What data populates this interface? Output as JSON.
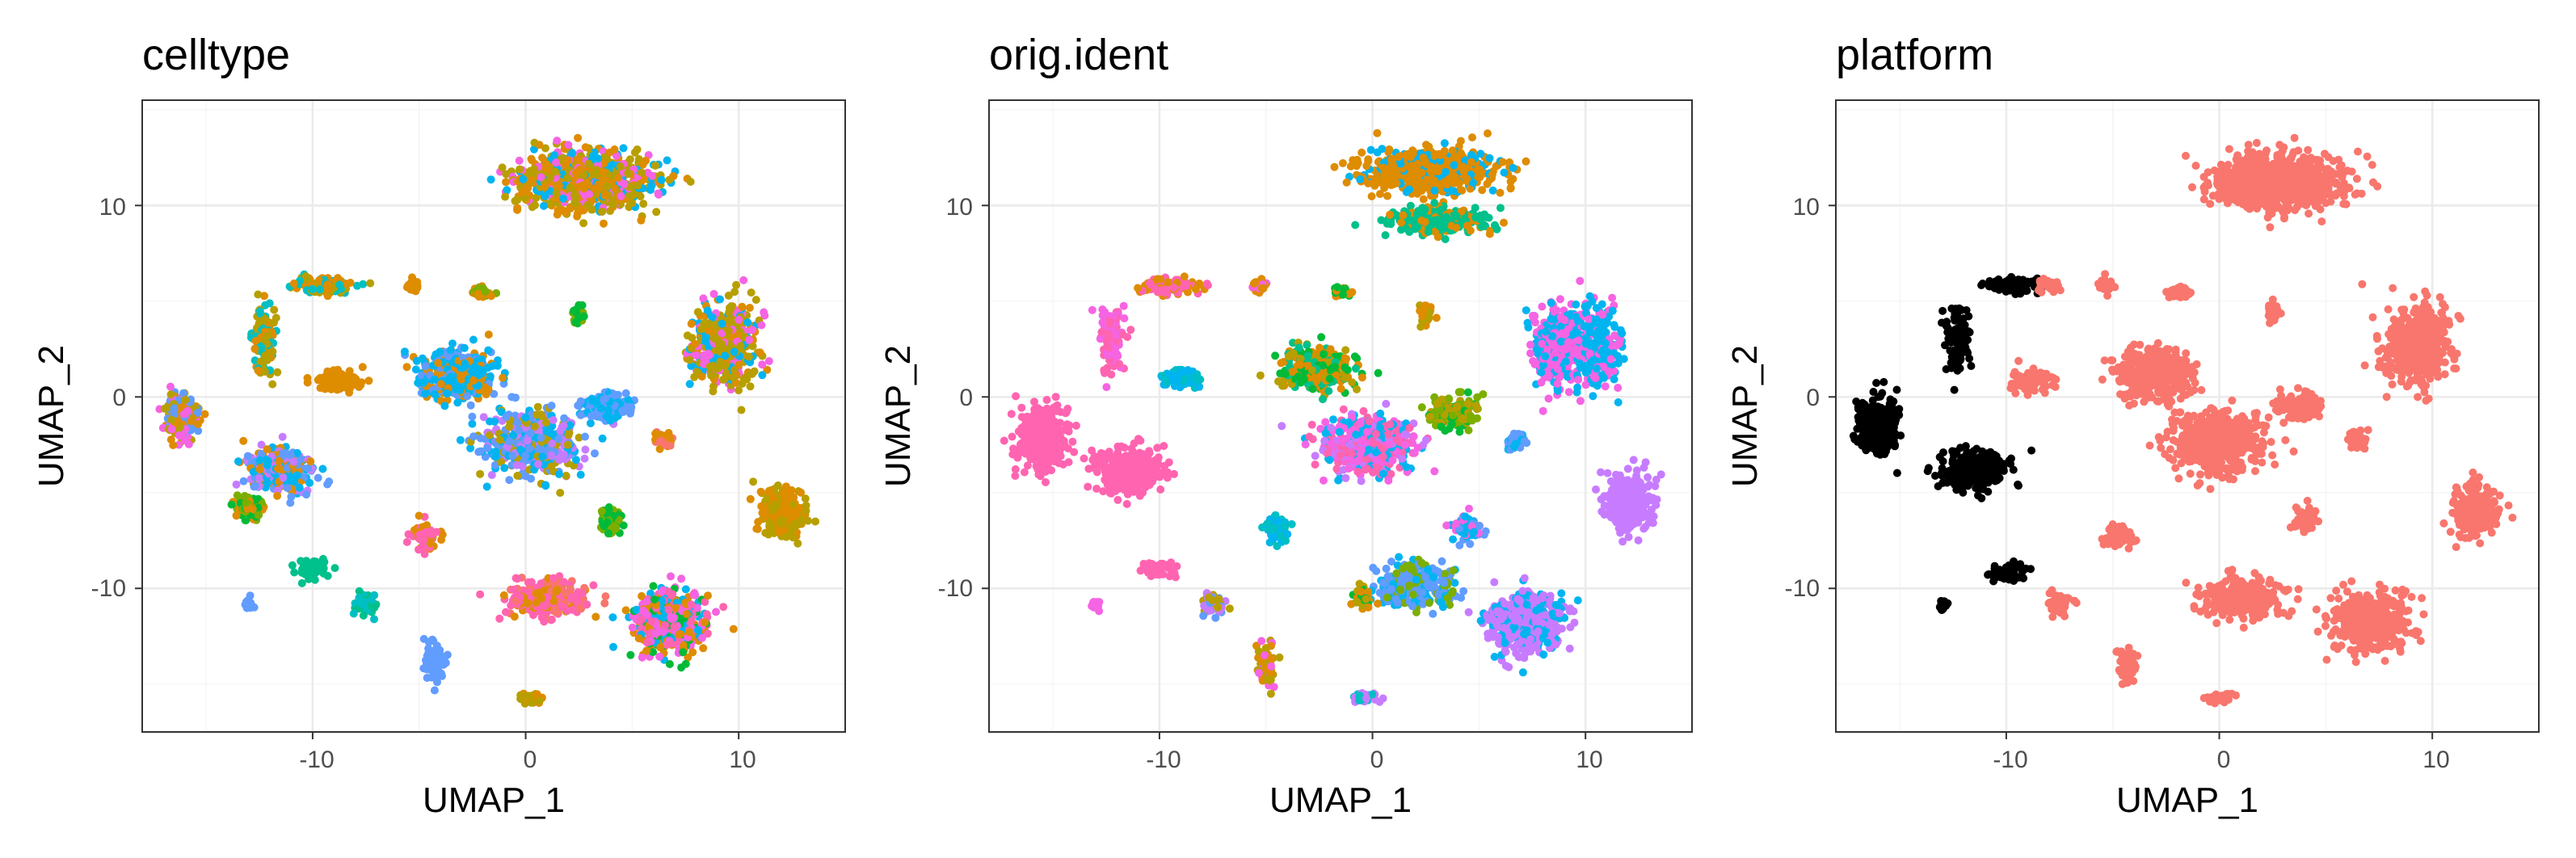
{
  "chart_data": [
    {
      "type": "scatter",
      "title": "celltype",
      "xlabel": "UMAP_1",
      "ylabel": "UMAP_2",
      "xlim": [
        -18,
        15
      ],
      "ylim": [
        -17.5,
        15.5
      ],
      "xticks": [
        -10,
        0,
        10
      ],
      "yticks": [
        -10,
        0,
        10
      ],
      "xtick_labels": [
        "-10",
        "0",
        "10"
      ],
      "ytick_labels": [
        "-10",
        "0",
        "10"
      ],
      "grid": true,
      "legend": "none",
      "palette": [
        "#F8766D",
        "#DE8C00",
        "#B79F00",
        "#7CAE00",
        "#00BA38",
        "#00C08B",
        "#00BFC4",
        "#00B4F0",
        "#619CFF",
        "#C77CFF",
        "#F564E3",
        "#FF64B0"
      ],
      "clusters": [
        {
          "x": 2.8,
          "y": 11.3,
          "sx": 2.8,
          "sy": 1.3,
          "n": 900,
          "colors": [
            1,
            2,
            1,
            2,
            7,
            10
          ]
        },
        {
          "x": 9.3,
          "y": 2.7,
          "sx": 1.4,
          "sy": 1.9,
          "n": 500,
          "colors": [
            2,
            1,
            2,
            7,
            10
          ]
        },
        {
          "x": 1.0,
          "y": -10.5,
          "sx": 1.6,
          "sy": 0.9,
          "n": 300,
          "colors": [
            11,
            11,
            0,
            1
          ]
        },
        {
          "x": 6.8,
          "y": -11.8,
          "sx": 1.6,
          "sy": 1.4,
          "n": 450,
          "colors": [
            11,
            10,
            1,
            7,
            4
          ]
        },
        {
          "x": 12.0,
          "y": -6.0,
          "sx": 0.9,
          "sy": 1.1,
          "n": 280,
          "colors": [
            2,
            1
          ]
        },
        {
          "x": -3.2,
          "y": 1.2,
          "sx": 1.6,
          "sy": 1.2,
          "n": 420,
          "colors": [
            7,
            7,
            8,
            1
          ]
        },
        {
          "x": 0.3,
          "y": -2.4,
          "sx": 2.0,
          "sy": 1.5,
          "n": 500,
          "colors": [
            8,
            9,
            7,
            2
          ]
        },
        {
          "x": 3.8,
          "y": -0.5,
          "sx": 1.0,
          "sy": 0.6,
          "n": 150,
          "colors": [
            7,
            8
          ]
        },
        {
          "x": -16.2,
          "y": -1.0,
          "sx": 0.7,
          "sy": 1.1,
          "n": 200,
          "colors": [
            1,
            2,
            8,
            10
          ]
        },
        {
          "x": -11.5,
          "y": -3.8,
          "sx": 1.4,
          "sy": 1.0,
          "n": 320,
          "colors": [
            8,
            9,
            7,
            1
          ]
        },
        {
          "x": -13.0,
          "y": -5.8,
          "sx": 0.6,
          "sy": 0.5,
          "n": 80,
          "colors": [
            4,
            3,
            1
          ]
        },
        {
          "x": -12.3,
          "y": 3.0,
          "sx": 0.5,
          "sy": 1.6,
          "n": 120,
          "colors": [
            1,
            2,
            6
          ]
        },
        {
          "x": -9.5,
          "y": 5.8,
          "sx": 1.3,
          "sy": 0.4,
          "n": 100,
          "colors": [
            1,
            2,
            6
          ]
        },
        {
          "x": -8.8,
          "y": 0.8,
          "sx": 0.9,
          "sy": 0.5,
          "n": 90,
          "colors": [
            1
          ]
        },
        {
          "x": -5.3,
          "y": 5.8,
          "sx": 0.3,
          "sy": 0.3,
          "n": 30,
          "colors": [
            1
          ]
        },
        {
          "x": -2.0,
          "y": 5.5,
          "sx": 0.4,
          "sy": 0.3,
          "n": 35,
          "colors": [
            1,
            3
          ]
        },
        {
          "x": 2.5,
          "y": 4.4,
          "sx": 0.3,
          "sy": 0.5,
          "n": 40,
          "colors": [
            3,
            4
          ]
        },
        {
          "x": 4.0,
          "y": -6.4,
          "sx": 0.5,
          "sy": 0.6,
          "n": 60,
          "colors": [
            3,
            4
          ]
        },
        {
          "x": 6.5,
          "y": -2.2,
          "sx": 0.4,
          "sy": 0.4,
          "n": 45,
          "colors": [
            0,
            1
          ]
        },
        {
          "x": -4.7,
          "y": -7.3,
          "sx": 0.6,
          "sy": 0.5,
          "n": 60,
          "colors": [
            1,
            11
          ]
        },
        {
          "x": -7.5,
          "y": -10.8,
          "sx": 0.5,
          "sy": 0.5,
          "n": 60,
          "colors": [
            5,
            6
          ]
        },
        {
          "x": -10.0,
          "y": -9.0,
          "sx": 0.8,
          "sy": 0.4,
          "n": 50,
          "colors": [
            5
          ]
        },
        {
          "x": -4.3,
          "y": -14.0,
          "sx": 0.4,
          "sy": 1.0,
          "n": 70,
          "colors": [
            8
          ]
        },
        {
          "x": 0.2,
          "y": -15.7,
          "sx": 0.5,
          "sy": 0.2,
          "n": 40,
          "colors": [
            2,
            1
          ]
        },
        {
          "x": -13.0,
          "y": -10.8,
          "sx": 0.2,
          "sy": 0.3,
          "n": 15,
          "colors": [
            8
          ]
        }
      ]
    },
    {
      "type": "scatter",
      "title": "orig.ident",
      "xlabel": "UMAP_1",
      "ylabel": "UMAP_2",
      "xlim": [
        -18,
        15
      ],
      "ylim": [
        -17.5,
        15.5
      ],
      "xticks": [
        -10,
        0,
        10
      ],
      "yticks": [
        -10,
        0,
        10
      ],
      "xtick_labels": [
        "-10",
        "0",
        "10"
      ],
      "ytick_labels": [
        "-10",
        "0",
        "10"
      ],
      "grid": true,
      "legend": "none",
      "palette": [
        "#F8766D",
        "#DE8C00",
        "#B79F00",
        "#7CAE00",
        "#00BA38",
        "#00C08B",
        "#00BFC4",
        "#00B4F0",
        "#619CFF",
        "#C77CFF",
        "#F564E3",
        "#FF64B0"
      ],
      "clusters": [
        {
          "x": 2.8,
          "y": 11.8,
          "sx": 2.8,
          "sy": 1.0,
          "n": 700,
          "colors": [
            1,
            1,
            1,
            7
          ]
        },
        {
          "x": 3.0,
          "y": 9.2,
          "sx": 2.2,
          "sy": 0.6,
          "n": 300,
          "colors": [
            5,
            5,
            1
          ]
        },
        {
          "x": 8.8,
          "y": 2.7,
          "sx": 1.2,
          "sy": 1.8,
          "n": 350,
          "colors": [
            10,
            10,
            7
          ]
        },
        {
          "x": 10.6,
          "y": 2.7,
          "sx": 0.9,
          "sy": 1.9,
          "n": 250,
          "colors": [
            7,
            7,
            10
          ]
        },
        {
          "x": 12.0,
          "y": -5.5,
          "sx": 1.0,
          "sy": 1.3,
          "n": 300,
          "colors": [
            9
          ]
        },
        {
          "x": 7.2,
          "y": -11.8,
          "sx": 1.6,
          "sy": 1.5,
          "n": 450,
          "colors": [
            9,
            9,
            7
          ]
        },
        {
          "x": 2.0,
          "y": -9.8,
          "sx": 1.6,
          "sy": 1.0,
          "n": 320,
          "colors": [
            8,
            8,
            7,
            3
          ]
        },
        {
          "x": -2.6,
          "y": 1.5,
          "sx": 1.5,
          "sy": 1.0,
          "n": 300,
          "colors": [
            1,
            5,
            4,
            2
          ]
        },
        {
          "x": -0.3,
          "y": -2.5,
          "sx": 1.9,
          "sy": 1.4,
          "n": 450,
          "colors": [
            10,
            9,
            11,
            7
          ]
        },
        {
          "x": 3.8,
          "y": -0.8,
          "sx": 1.0,
          "sy": 0.7,
          "n": 150,
          "colors": [
            4,
            3,
            2
          ]
        },
        {
          "x": -15.5,
          "y": -2.0,
          "sx": 1.0,
          "sy": 1.6,
          "n": 280,
          "colors": [
            11
          ]
        },
        {
          "x": -11.5,
          "y": -3.8,
          "sx": 1.5,
          "sy": 1.0,
          "n": 320,
          "colors": [
            11
          ]
        },
        {
          "x": -12.3,
          "y": 3.0,
          "sx": 0.5,
          "sy": 1.6,
          "n": 120,
          "colors": [
            11,
            10
          ]
        },
        {
          "x": -9.5,
          "y": 5.8,
          "sx": 1.3,
          "sy": 0.4,
          "n": 100,
          "colors": [
            11,
            1
          ]
        },
        {
          "x": -9.0,
          "y": 1.0,
          "sx": 0.8,
          "sy": 0.4,
          "n": 80,
          "colors": [
            7,
            6
          ]
        },
        {
          "x": -5.3,
          "y": 5.8,
          "sx": 0.3,
          "sy": 0.3,
          "n": 30,
          "colors": [
            10,
            1
          ]
        },
        {
          "x": -1.5,
          "y": 5.5,
          "sx": 0.4,
          "sy": 0.3,
          "n": 35,
          "colors": [
            1,
            4
          ]
        },
        {
          "x": 2.5,
          "y": 4.4,
          "sx": 0.3,
          "sy": 0.5,
          "n": 40,
          "colors": [
            1,
            2
          ]
        },
        {
          "x": 4.5,
          "y": -6.8,
          "sx": 0.6,
          "sy": 0.6,
          "n": 70,
          "colors": [
            7,
            8,
            10
          ]
        },
        {
          "x": 6.8,
          "y": -2.3,
          "sx": 0.4,
          "sy": 0.4,
          "n": 45,
          "colors": [
            7,
            8
          ]
        },
        {
          "x": -4.5,
          "y": -7.0,
          "sx": 0.5,
          "sy": 0.6,
          "n": 60,
          "colors": [
            6,
            7
          ]
        },
        {
          "x": -7.5,
          "y": -10.8,
          "sx": 0.5,
          "sy": 0.5,
          "n": 60,
          "colors": [
            8,
            9,
            2
          ]
        },
        {
          "x": -10.0,
          "y": -9.0,
          "sx": 0.8,
          "sy": 0.4,
          "n": 50,
          "colors": [
            11
          ]
        },
        {
          "x": -5.0,
          "y": -14.0,
          "sx": 0.4,
          "sy": 1.0,
          "n": 70,
          "colors": [
            10,
            2,
            1
          ]
        },
        {
          "x": -0.5,
          "y": -10.5,
          "sx": 0.5,
          "sy": 0.5,
          "n": 50,
          "colors": [
            1,
            4,
            2
          ]
        },
        {
          "x": -0.3,
          "y": -15.7,
          "sx": 0.5,
          "sy": 0.2,
          "n": 40,
          "colors": [
            6,
            9
          ]
        },
        {
          "x": -13.0,
          "y": -10.8,
          "sx": 0.2,
          "sy": 0.3,
          "n": 15,
          "colors": [
            10
          ]
        }
      ]
    },
    {
      "type": "scatter",
      "title": "platform",
      "xlabel": "UMAP_1",
      "ylabel": "UMAP_2",
      "xlim": [
        -18,
        15
      ],
      "ylim": [
        -17.5,
        15.5
      ],
      "xticks": [
        -10,
        0,
        10
      ],
      "yticks": [
        -10,
        0,
        10
      ],
      "xtick_labels": [
        "-10",
        "0",
        "10"
      ],
      "ytick_labels": [
        "-10",
        "0",
        "10"
      ],
      "grid": true,
      "legend": "none",
      "palette": [
        "#F8766D",
        "#00BFC4"
      ],
      "clusters": [
        {
          "x": 2.8,
          "y": 11.3,
          "sx": 2.8,
          "sy": 1.3,
          "n": 800,
          "colors": [
            0
          ]
        },
        {
          "x": 9.3,
          "y": 2.7,
          "sx": 1.4,
          "sy": 1.9,
          "n": 450,
          "colors": [
            0
          ]
        },
        {
          "x": 1.0,
          "y": -10.5,
          "sx": 1.6,
          "sy": 0.9,
          "n": 280,
          "colors": [
            0
          ]
        },
        {
          "x": 7.0,
          "y": -11.8,
          "sx": 1.6,
          "sy": 1.4,
          "n": 420,
          "colors": [
            0
          ]
        },
        {
          "x": 12.0,
          "y": -6.0,
          "sx": 0.9,
          "sy": 1.1,
          "n": 260,
          "colors": [
            0
          ]
        },
        {
          "x": -3.0,
          "y": 1.2,
          "sx": 1.6,
          "sy": 1.2,
          "n": 380,
          "colors": [
            0
          ]
        },
        {
          "x": 0.0,
          "y": -2.4,
          "sx": 2.0,
          "sy": 1.5,
          "n": 450,
          "colors": [
            0
          ]
        },
        {
          "x": 3.8,
          "y": -0.5,
          "sx": 1.0,
          "sy": 0.6,
          "n": 130,
          "colors": [
            0
          ]
        },
        {
          "x": -16.0,
          "y": -1.5,
          "sx": 0.9,
          "sy": 1.3,
          "n": 250,
          "colors": [
            6
          ]
        },
        {
          "x": -11.5,
          "y": -3.8,
          "sx": 1.5,
          "sy": 1.0,
          "n": 300,
          "colors": [
            6
          ]
        },
        {
          "x": -12.3,
          "y": 3.0,
          "sx": 0.5,
          "sy": 1.6,
          "n": 110,
          "colors": [
            6
          ]
        },
        {
          "x": -9.8,
          "y": 5.8,
          "sx": 1.1,
          "sy": 0.4,
          "n": 80,
          "colors": [
            6
          ]
        },
        {
          "x": -8.0,
          "y": 5.8,
          "sx": 0.5,
          "sy": 0.3,
          "n": 40,
          "colors": [
            0
          ]
        },
        {
          "x": -8.8,
          "y": 0.8,
          "sx": 0.9,
          "sy": 0.5,
          "n": 80,
          "colors": [
            0
          ]
        },
        {
          "x": -5.3,
          "y": 5.8,
          "sx": 0.3,
          "sy": 0.3,
          "n": 30,
          "colors": [
            0
          ]
        },
        {
          "x": -1.8,
          "y": 5.5,
          "sx": 0.4,
          "sy": 0.3,
          "n": 35,
          "colors": [
            0
          ]
        },
        {
          "x": 2.5,
          "y": 4.4,
          "sx": 0.3,
          "sy": 0.5,
          "n": 40,
          "colors": [
            0
          ]
        },
        {
          "x": 4.0,
          "y": -6.4,
          "sx": 0.5,
          "sy": 0.6,
          "n": 60,
          "colors": [
            0
          ]
        },
        {
          "x": 6.5,
          "y": -2.2,
          "sx": 0.4,
          "sy": 0.4,
          "n": 45,
          "colors": [
            0
          ]
        },
        {
          "x": -4.7,
          "y": -7.3,
          "sx": 0.6,
          "sy": 0.5,
          "n": 60,
          "colors": [
            0
          ]
        },
        {
          "x": -7.5,
          "y": -10.8,
          "sx": 0.5,
          "sy": 0.5,
          "n": 55,
          "colors": [
            0
          ]
        },
        {
          "x": -10.0,
          "y": -9.2,
          "sx": 0.8,
          "sy": 0.4,
          "n": 50,
          "colors": [
            6
          ]
        },
        {
          "x": -4.3,
          "y": -14.0,
          "sx": 0.4,
          "sy": 1.0,
          "n": 65,
          "colors": [
            0
          ]
        },
        {
          "x": 0.0,
          "y": -15.7,
          "sx": 0.5,
          "sy": 0.2,
          "n": 40,
          "colors": [
            0
          ]
        },
        {
          "x": -13.0,
          "y": -10.8,
          "sx": 0.2,
          "sy": 0.3,
          "n": 15,
          "colors": [
            6
          ]
        }
      ]
    }
  ]
}
